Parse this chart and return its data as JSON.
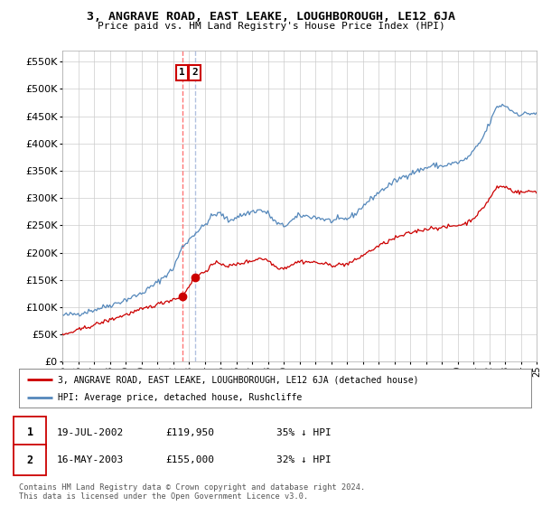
{
  "title1": "3, ANGRAVE ROAD, EAST LEAKE, LOUGHBOROUGH, LE12 6JA",
  "title2": "Price paid vs. HM Land Registry's House Price Index (HPI)",
  "legend_red": "3, ANGRAVE ROAD, EAST LEAKE, LOUGHBOROUGH, LE12 6JA (detached house)",
  "legend_blue": "HPI: Average price, detached house, Rushcliffe",
  "transaction1_date": "19-JUL-2002",
  "transaction1_price": "£119,950",
  "transaction1_hpi": "35% ↓ HPI",
  "transaction2_date": "16-MAY-2003",
  "transaction2_price": "£155,000",
  "transaction2_hpi": "32% ↓ HPI",
  "footnote1": "Contains HM Land Registry data © Crown copyright and database right 2024.",
  "footnote2": "This data is licensed under the Open Government Licence v3.0.",
  "ylim": [
    0,
    570000
  ],
  "yticks": [
    0,
    50000,
    100000,
    150000,
    200000,
    250000,
    300000,
    350000,
    400000,
    450000,
    500000,
    550000
  ],
  "background_color": "#ffffff",
  "grid_color": "#cccccc",
  "red_color": "#cc0000",
  "blue_color": "#5588bb",
  "vline1_color": "#ff6666",
  "vline2_color": "#aabbdd",
  "t1_year": 2002.583,
  "t2_year": 2003.375,
  "t1_val": 119950,
  "t2_val": 155000
}
